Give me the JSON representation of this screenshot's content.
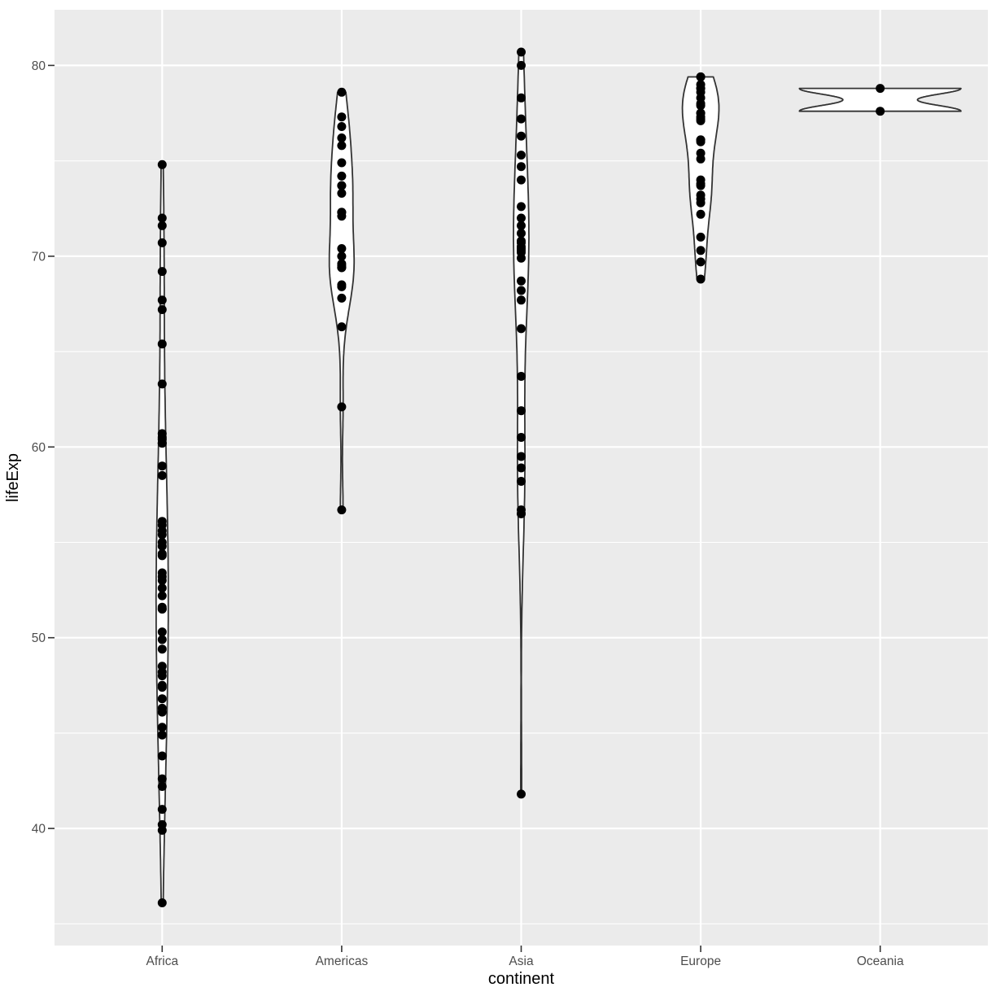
{
  "chart_data": {
    "type": "violin",
    "title": "",
    "xlabel": "continent",
    "ylabel": "lifeExp",
    "categories": [
      "Africa",
      "Americas",
      "Asia",
      "Europe",
      "Oceania"
    ],
    "series": [
      {
        "name": "Africa",
        "values": [
          74.8,
          72.0,
          71.6,
          70.7,
          69.2,
          67.7,
          67.2,
          65.4,
          63.3,
          60.7,
          60.5,
          60.4,
          60.2,
          60.2,
          59.0,
          58.5,
          56.1,
          55.9,
          55.6,
          55.4,
          55.0,
          54.8,
          54.4,
          54.3,
          53.4,
          53.2,
          53.0,
          52.6,
          52.2,
          51.6,
          51.5,
          51.5,
          50.3,
          49.9,
          49.4,
          48.5,
          48.2,
          48.0,
          47.5,
          47.4,
          46.8,
          46.3,
          46.1,
          45.3,
          44.9,
          43.8,
          42.6,
          42.2,
          41.0,
          40.2,
          39.9,
          36.1
        ]
      },
      {
        "name": "Americas",
        "values": [
          78.6,
          77.3,
          76.8,
          76.2,
          75.8,
          74.9,
          74.2,
          73.7,
          73.7,
          73.3,
          72.3,
          72.3,
          72.1,
          70.4,
          70.0,
          69.6,
          69.5,
          69.4,
          69.4,
          68.5,
          68.4,
          67.8,
          66.3,
          62.1,
          56.7
        ]
      },
      {
        "name": "Asia",
        "values": [
          80.7,
          80.0,
          78.3,
          77.2,
          76.3,
          75.3,
          74.7,
          74.0,
          72.6,
          72.0,
          71.6,
          71.2,
          70.8,
          70.7,
          70.5,
          70.4,
          70.3,
          70.2,
          69.9,
          68.7,
          68.2,
          67.7,
          66.2,
          63.7,
          61.9,
          60.5,
          59.5,
          58.9,
          58.2,
          56.7,
          56.5,
          56.5,
          41.8
        ]
      },
      {
        "name": "Europe",
        "values": [
          79.4,
          79.4,
          79.0,
          78.8,
          78.8,
          78.6,
          78.3,
          78.0,
          77.9,
          77.5,
          77.5,
          77.3,
          77.2,
          77.1,
          76.1,
          76.1,
          76.0,
          75.4,
          75.1,
          74.0,
          73.8,
          73.7,
          73.2,
          73.0,
          72.8,
          72.2,
          71.0,
          70.3,
          69.7,
          68.8
        ]
      },
      {
        "name": "Oceania",
        "values": [
          78.8,
          77.6
        ]
      }
    ],
    "points_overlaid": true,
    "y_ticks": [
      40,
      50,
      60,
      70,
      80
    ],
    "y_minor_ticks": [
      35,
      45,
      55,
      65,
      75
    ],
    "ylim": [
      33.86,
      82.92
    ],
    "grid": "horizontal major and minor gridlines",
    "legend": "none",
    "violin_scale": "area",
    "theme": "ggplot2 grey"
  },
  "colors": {
    "figure_background": "#FFFFFF",
    "panel_background": "#EBEBEB",
    "gridline": "#FFFFFF",
    "violin_fill": "#FFFFFF",
    "violin_outline": "#333333",
    "point": "#000000",
    "axis_text": "#4D4D4D",
    "axis_title": "#000000",
    "tick_mark": "#333333"
  }
}
